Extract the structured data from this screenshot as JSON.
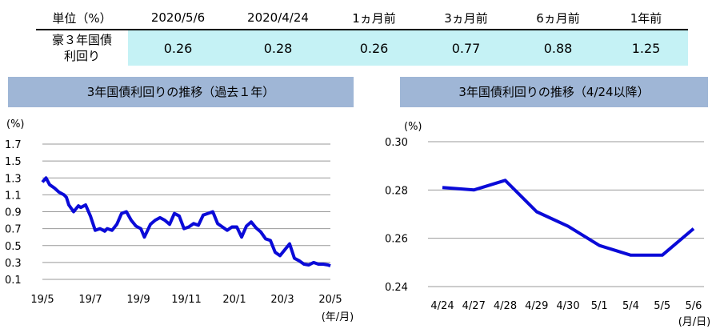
{
  "table": {
    "headers": [
      "単位（%）",
      "2020/5/6",
      "2020/4/24",
      "1ヵ月前",
      "3ヵ月前",
      "6ヵ月前",
      "1年前"
    ],
    "row_label_lines": [
      "豪３年国債",
      "利回り"
    ],
    "values": [
      "0.26",
      "0.28",
      "0.26",
      "0.77",
      "0.88",
      "1.25"
    ]
  },
  "colors": {
    "line": "#0a0ad8",
    "title_bg": "#9fb6d6",
    "value_bg": "#c5f2f5",
    "grid": "#999999"
  },
  "chart_data": [
    {
      "type": "line",
      "title": "3年国債利回りの推移（過去１年）",
      "ylabel": "(%)",
      "xlabel": "(年/月)",
      "ylim": [
        0.1,
        1.7
      ],
      "yticks": [
        1.7,
        1.5,
        1.3,
        1.1,
        0.9,
        0.7,
        0.5,
        0.3,
        0.1
      ],
      "ytick_labels": [
        "1.7",
        "1.5",
        "1.3",
        "1.1",
        "0.9",
        "0.7",
        "0.5",
        "0.3",
        "0.1"
      ],
      "xtick_labels": [
        "19/5",
        "19/7",
        "19/9",
        "19/11",
        "20/1",
        "20/3",
        "20/5"
      ],
      "xlim": [
        0,
        12
      ],
      "grid": true,
      "x": [
        0,
        0.15,
        0.3,
        0.5,
        0.7,
        0.9,
        1.0,
        1.1,
        1.3,
        1.5,
        1.6,
        1.8,
        2.0,
        2.2,
        2.4,
        2.6,
        2.7,
        2.9,
        3.1,
        3.3,
        3.5,
        3.7,
        3.9,
        4.1,
        4.25,
        4.5,
        4.7,
        4.9,
        5.1,
        5.3,
        5.5,
        5.7,
        5.9,
        6.1,
        6.3,
        6.5,
        6.7,
        6.9,
        7.1,
        7.3,
        7.5,
        7.7,
        7.9,
        8.1,
        8.3,
        8.5,
        8.7,
        8.9,
        9.1,
        9.3,
        9.5,
        9.7,
        9.9,
        10.1,
        10.3,
        10.5,
        10.7,
        10.9,
        11.1,
        11.3,
        11.5,
        11.7,
        11.9,
        12.0
      ],
      "y": [
        1.25,
        1.3,
        1.22,
        1.18,
        1.13,
        1.1,
        1.07,
        0.98,
        0.9,
        0.97,
        0.95,
        0.98,
        0.85,
        0.68,
        0.7,
        0.67,
        0.7,
        0.68,
        0.75,
        0.88,
        0.9,
        0.8,
        0.73,
        0.7,
        0.6,
        0.75,
        0.8,
        0.83,
        0.8,
        0.75,
        0.88,
        0.85,
        0.7,
        0.72,
        0.76,
        0.74,
        0.86,
        0.88,
        0.9,
        0.76,
        0.72,
        0.68,
        0.72,
        0.72,
        0.6,
        0.73,
        0.78,
        0.71,
        0.66,
        0.58,
        0.56,
        0.42,
        0.38,
        0.45,
        0.52,
        0.35,
        0.32,
        0.28,
        0.27,
        0.3,
        0.28,
        0.28,
        0.27,
        0.26
      ]
    },
    {
      "type": "line",
      "title": "3年国債利回りの推移（4/24以降）",
      "ylabel": "(%)",
      "xlabel": "(月/日)",
      "ylim": [
        0.24,
        0.3
      ],
      "yticks": [
        0.3,
        0.28,
        0.26,
        0.24
      ],
      "ytick_labels": [
        "0.30",
        "0.28",
        "0.26",
        "0.24"
      ],
      "categories": [
        "4/24",
        "4/27",
        "4/28",
        "4/29",
        "4/30",
        "5/1",
        "5/4",
        "5/5",
        "5/6"
      ],
      "values": [
        0.281,
        0.28,
        0.284,
        0.271,
        0.265,
        0.257,
        0.253,
        0.253,
        0.264
      ],
      "grid": true
    }
  ]
}
